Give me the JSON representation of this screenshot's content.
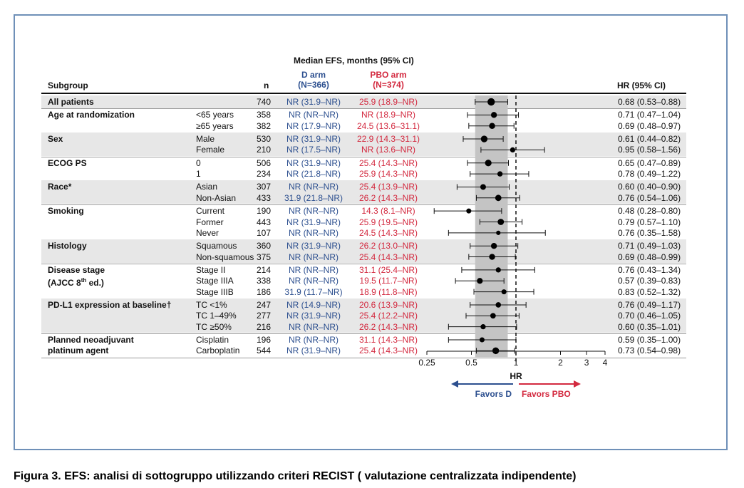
{
  "header": {
    "subgroup_label": "Subgroup",
    "n_label": "n",
    "efs_title": "Median EFS, months (95% CI)",
    "d_arm": "D arm",
    "d_n": "(N=366)",
    "pbo_arm": "PBO arm",
    "pbo_n": "(N=374)",
    "hr_col": "HR (95% CI)"
  },
  "groups": [
    {
      "name": [
        "All patients"
      ],
      "rows": [
        {
          "level": "",
          "n": "740",
          "d": "NR (31.9–NR)",
          "pbo": "25.9 (18.9–NR)",
          "hr": "0.68 (0.53–0.88)"
        }
      ]
    },
    {
      "name": [
        "Age at randomization"
      ],
      "rows": [
        {
          "level": "<65 years",
          "n": "358",
          "d": "NR (NR–NR)",
          "pbo": "NR (18.9–NR)",
          "hr": "0.71 (0.47–1.04)"
        },
        {
          "level": "≥65 years",
          "n": "382",
          "d": "NR (17.9–NR)",
          "pbo": "24.5 (13.6–31.1)",
          "hr": "0.69 (0.48–0.97)"
        }
      ]
    },
    {
      "name": [
        "Sex"
      ],
      "rows": [
        {
          "level": "Male",
          "n": "530",
          "d": "NR (31.9–NR)",
          "pbo": "22.9 (14.3–31.1)",
          "hr": "0.61 (0.44–0.82)"
        },
        {
          "level": "Female",
          "n": "210",
          "d": "NR (17.5–NR)",
          "pbo": "NR (13.6–NR)",
          "hr": "0.95 (0.58–1.56)"
        }
      ]
    },
    {
      "name": [
        "ECOG PS"
      ],
      "rows": [
        {
          "level": "0",
          "n": "506",
          "d": "NR (31.9–NR)",
          "pbo": "25.4 (14.3–NR)",
          "hr": "0.65 (0.47–0.89)"
        },
        {
          "level": "1",
          "n": "234",
          "d": "NR (21.8–NR)",
          "pbo": "25.9 (14.3–NR)",
          "hr": "0.78 (0.49–1.22)"
        }
      ]
    },
    {
      "name": [
        "Race*"
      ],
      "rows": [
        {
          "level": "Asian",
          "n": "307",
          "d": "NR (NR–NR)",
          "pbo": "25.4 (13.9–NR)",
          "hr": "0.60 (0.40–0.90)"
        },
        {
          "level": "Non-Asian",
          "n": "433",
          "d": "31.9 (21.8–NR)",
          "pbo": "26.2 (14.3–NR)",
          "hr": "0.76 (0.54–1.06)"
        }
      ]
    },
    {
      "name": [
        "Smoking"
      ],
      "rows": [
        {
          "level": "Current",
          "n": "190",
          "d": "NR (NR–NR)",
          "pbo": "14.3 (8.1–NR)",
          "hr": "0.48 (0.28–0.80)"
        },
        {
          "level": "Former",
          "n": "443",
          "d": "NR (31.9–NR)",
          "pbo": "25.9 (19.5–NR)",
          "hr": "0.79 (0.57–1.10)"
        },
        {
          "level": "Never",
          "n": "107",
          "d": "NR (NR–NR)",
          "pbo": "24.5 (14.3–NR)",
          "hr": "0.76 (0.35–1.58)"
        }
      ]
    },
    {
      "name": [
        "Histology"
      ],
      "rows": [
        {
          "level": "Squamous",
          "n": "360",
          "d": "NR (31.9–NR)",
          "pbo": "26.2 (13.0–NR)",
          "hr": "0.71 (0.49–1.03)"
        },
        {
          "level": "Non-squamous",
          "n": "375",
          "d": "NR (NR–NR)",
          "pbo": "25.4 (14.3–NR)",
          "hr": "0.69 (0.48–0.99)"
        }
      ]
    },
    {
      "name": [
        "Disease stage",
        "(AJCC 8th ed.)"
      ],
      "rows": [
        {
          "level": "Stage II",
          "n": "214",
          "d": "NR (NR–NR)",
          "pbo": "31.1 (25.4–NR)",
          "hr": "0.76 (0.43–1.34)"
        },
        {
          "level": "Stage IIIA",
          "n": "338",
          "d": "NR (NR–NR)",
          "pbo": "19.5 (11.7–NR)",
          "hr": "0.57 (0.39–0.83)"
        },
        {
          "level": "Stage IIIB",
          "n": "186",
          "d": "31.9 (11.7–NR)",
          "pbo": "18.9 (11.8–NR)",
          "hr": "0.83 (0.52–1.32)"
        }
      ]
    },
    {
      "name": [
        "PD-L1 expression at baseline†"
      ],
      "rows": [
        {
          "level": "TC <1%",
          "n": "247",
          "d": "NR (14.9–NR)",
          "pbo": "20.6 (13.9–NR)",
          "hr": "0.76 (0.49–1.17)"
        },
        {
          "level": "TC 1–49%",
          "n": "277",
          "d": "NR (31.9–NR)",
          "pbo": "25.4 (12.2–NR)",
          "hr": "0.70 (0.46–1.05)"
        },
        {
          "level": "TC ≥50%",
          "n": "216",
          "d": "NR (NR–NR)",
          "pbo": "26.2 (14.3–NR)",
          "hr": "0.60 (0.35–1.01)"
        }
      ]
    },
    {
      "name": [
        "Planned neoadjuvant",
        "platinum agent"
      ],
      "rows": [
        {
          "level": "Cisplatin",
          "n": "196",
          "d": "NR (NR–NR)",
          "pbo": "31.1 (14.3–NR)",
          "hr": "0.59 (0.35–1.00)"
        },
        {
          "level": "Carboplatin",
          "n": "544",
          "d": "NR (31.9–NR)",
          "pbo": "25.4 (14.3–NR)",
          "hr": "0.73 (0.54–0.98)"
        }
      ]
    }
  ],
  "chart_data": {
    "type": "scatter",
    "subtype": "forest-plot",
    "xlabel": "HR",
    "x_scale": "log",
    "xlim": [
      0.25,
      4
    ],
    "x_ticks": [
      "0.25",
      "0.5",
      "1",
      "2",
      "3",
      "4"
    ],
    "x_tick_values": [
      0.25,
      0.5,
      1,
      2,
      3,
      4
    ],
    "reference_line": 1,
    "shaded_band": [
      0.53,
      0.88
    ],
    "favors_left": "Favors D",
    "favors_right": "Favors PBO",
    "colors": {
      "favors_left": "#2c4f8f",
      "favors_right": "#d3293f",
      "band": "#c4c4c4"
    },
    "points": [
      {
        "label": "All patients",
        "hr": 0.68,
        "lo": 0.53,
        "hi": 0.88,
        "n": 740
      },
      {
        "label": "<65 years",
        "hr": 0.71,
        "lo": 0.47,
        "hi": 1.04,
        "n": 358
      },
      {
        "label": "≥65 years",
        "hr": 0.69,
        "lo": 0.48,
        "hi": 0.97,
        "n": 382
      },
      {
        "label": "Male",
        "hr": 0.61,
        "lo": 0.44,
        "hi": 0.82,
        "n": 530
      },
      {
        "label": "Female",
        "hr": 0.95,
        "lo": 0.58,
        "hi": 1.56,
        "n": 210
      },
      {
        "label": "0",
        "hr": 0.65,
        "lo": 0.47,
        "hi": 0.89,
        "n": 506
      },
      {
        "label": "1",
        "hr": 0.78,
        "lo": 0.49,
        "hi": 1.22,
        "n": 234
      },
      {
        "label": "Asian",
        "hr": 0.6,
        "lo": 0.4,
        "hi": 0.9,
        "n": 307
      },
      {
        "label": "Non-Asian",
        "hr": 0.76,
        "lo": 0.54,
        "hi": 1.06,
        "n": 433
      },
      {
        "label": "Current",
        "hr": 0.48,
        "lo": 0.28,
        "hi": 0.8,
        "n": 190
      },
      {
        "label": "Former",
        "hr": 0.79,
        "lo": 0.57,
        "hi": 1.1,
        "n": 443
      },
      {
        "label": "Never",
        "hr": 0.76,
        "lo": 0.35,
        "hi": 1.58,
        "n": 107
      },
      {
        "label": "Squamous",
        "hr": 0.71,
        "lo": 0.49,
        "hi": 1.03,
        "n": 360
      },
      {
        "label": "Non-squamous",
        "hr": 0.69,
        "lo": 0.48,
        "hi": 0.99,
        "n": 375
      },
      {
        "label": "Stage II",
        "hr": 0.76,
        "lo": 0.43,
        "hi": 1.34,
        "n": 214
      },
      {
        "label": "Stage IIIA",
        "hr": 0.57,
        "lo": 0.39,
        "hi": 0.83,
        "n": 338
      },
      {
        "label": "Stage IIIB",
        "hr": 0.83,
        "lo": 0.52,
        "hi": 1.32,
        "n": 186
      },
      {
        "label": "TC <1%",
        "hr": 0.76,
        "lo": 0.49,
        "hi": 1.17,
        "n": 247
      },
      {
        "label": "TC 1–49%",
        "hr": 0.7,
        "lo": 0.46,
        "hi": 1.05,
        "n": 277
      },
      {
        "label": "TC ≥50%",
        "hr": 0.6,
        "lo": 0.35,
        "hi": 1.01,
        "n": 216
      },
      {
        "label": "Cisplatin",
        "hr": 0.59,
        "lo": 0.35,
        "hi": 1.0,
        "n": 196
      },
      {
        "label": "Carboplatin",
        "hr": 0.73,
        "lo": 0.54,
        "hi": 0.98,
        "n": 544
      }
    ]
  },
  "caption": "Figura 3. EFS: analisi di sottogruppo utilizzando criteri RECIST ( valutazione centralizzata indipendente)"
}
